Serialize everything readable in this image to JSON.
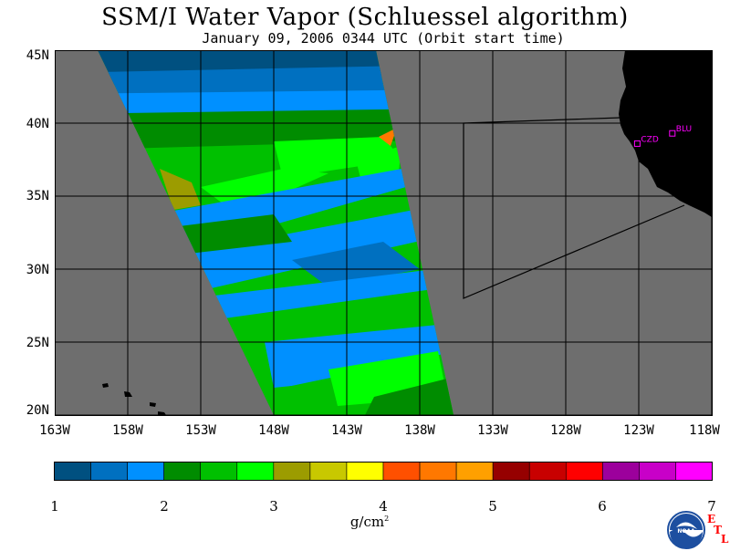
{
  "title": "SSM/I Water Vapor (Schluessel algorithm)",
  "subtitle": "January 09, 2006  0344 UTC  (Orbit start time)",
  "map": {
    "lat_labels": [
      "45N",
      "40N",
      "35N",
      "30N",
      "25N",
      "20N"
    ],
    "lat_values": [
      45,
      40,
      35,
      30,
      25,
      20
    ],
    "lon_labels": [
      "163W",
      "158W",
      "153W",
      "148W",
      "143W",
      "138W",
      "133W",
      "128W",
      "123W",
      "118W"
    ],
    "lon_values": [
      -163,
      -158,
      -153,
      -148,
      -143,
      -138,
      -133,
      -128,
      -123,
      -118
    ],
    "extent": {
      "lon_min": -163,
      "lon_max": -118,
      "lat_min": 20,
      "lat_max": 45
    },
    "background_color": "#6e6e6e",
    "land_color": "#000000",
    "stations": [
      {
        "label": "CZD",
        "lon": -123.1,
        "lat": 38.6
      },
      {
        "label": "BLU",
        "lon": -120.7,
        "lat": 39.3
      }
    ],
    "station_color": "#ff00ff"
  },
  "colorbar": {
    "unit": "g/cm",
    "unit_exp": "2",
    "tick_labels": [
      "1",
      "2",
      "3",
      "4",
      "5",
      "6",
      "7"
    ],
    "min": 1,
    "max": 7,
    "colors": [
      "#005080",
      "#0070c0",
      "#0090ff",
      "#008c00",
      "#00c000",
      "#00ff00",
      "#9c9c00",
      "#c8c800",
      "#ffff00",
      "#ff5000",
      "#ff7800",
      "#ffa000",
      "#960000",
      "#c80000",
      "#ff0000",
      "#9c009c",
      "#c800c8",
      "#ff00ff"
    ]
  },
  "logo": {
    "text": "NOAA",
    "etl": [
      "E",
      "T",
      "L"
    ]
  }
}
